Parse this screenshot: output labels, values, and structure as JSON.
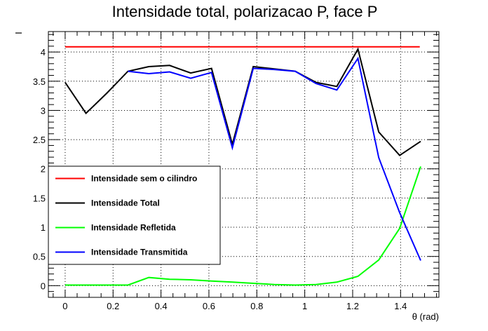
{
  "chart_data": {
    "type": "line",
    "title": "Intensidade total, polarizacao P, face P",
    "xlabel": "θ (rad)",
    "ylabel": "I",
    "xlim": [
      -0.07,
      1.56
    ],
    "ylim": [
      -0.2,
      4.35
    ],
    "x_ticks": [
      0,
      0.2,
      0.4,
      0.6,
      0.8,
      1,
      1.2,
      1.4
    ],
    "x_tick_labels": [
      "0",
      "0.2",
      "0.4",
      "0.6",
      "0.8",
      "1",
      "1.2",
      "1.4"
    ],
    "y_ticks": [
      0,
      0.5,
      1,
      1.5,
      2,
      2.5,
      3,
      3.5,
      4
    ],
    "y_tick_labels": [
      "0",
      "0.5",
      "1",
      "1.5",
      "2",
      "2.5",
      "3",
      "3.5",
      "4"
    ],
    "grid": true,
    "legend_position": "lower-left",
    "series": [
      {
        "name": "Intensidade sem o cilindro",
        "color": "#ff0000",
        "x": [
          0,
          1.48
        ],
        "y": [
          4.09,
          4.09
        ]
      },
      {
        "name": "Intensidade Total",
        "color": "#000000",
        "x": [
          0,
          0.087,
          0.175,
          0.262,
          0.349,
          0.436,
          0.524,
          0.611,
          0.698,
          0.785,
          0.873,
          0.96,
          1.047,
          1.134,
          1.222,
          1.309,
          1.396,
          1.484
        ],
        "y": [
          3.48,
          2.95,
          3.3,
          3.67,
          3.75,
          3.77,
          3.64,
          3.72,
          2.42,
          3.75,
          3.71,
          3.67,
          3.48,
          3.41,
          4.05,
          2.63,
          2.23,
          2.47
        ]
      },
      {
        "name": "Intensidade Refletida",
        "color": "#00ff00",
        "x": [
          0,
          0.087,
          0.175,
          0.262,
          0.349,
          0.436,
          0.524,
          0.611,
          0.698,
          0.785,
          0.873,
          0.96,
          1.047,
          1.134,
          1.222,
          1.309,
          1.396,
          1.484
        ],
        "y": [
          0.01,
          0.01,
          0.01,
          0.01,
          0.14,
          0.11,
          0.1,
          0.08,
          0.06,
          0.04,
          0.02,
          0.01,
          0.02,
          0.06,
          0.16,
          0.44,
          0.98,
          2.04
        ]
      },
      {
        "name": "Intensidade Transmitida",
        "color": "#0000ff",
        "x": [
          0.262,
          0.349,
          0.436,
          0.524,
          0.611,
          0.698,
          0.785,
          0.873,
          0.96,
          1.047,
          1.134,
          1.222,
          1.309,
          1.396,
          1.484
        ],
        "y": [
          3.67,
          3.63,
          3.66,
          3.55,
          3.65,
          2.36,
          3.72,
          3.7,
          3.67,
          3.46,
          3.35,
          3.89,
          2.19,
          1.25,
          0.43
        ]
      }
    ]
  }
}
